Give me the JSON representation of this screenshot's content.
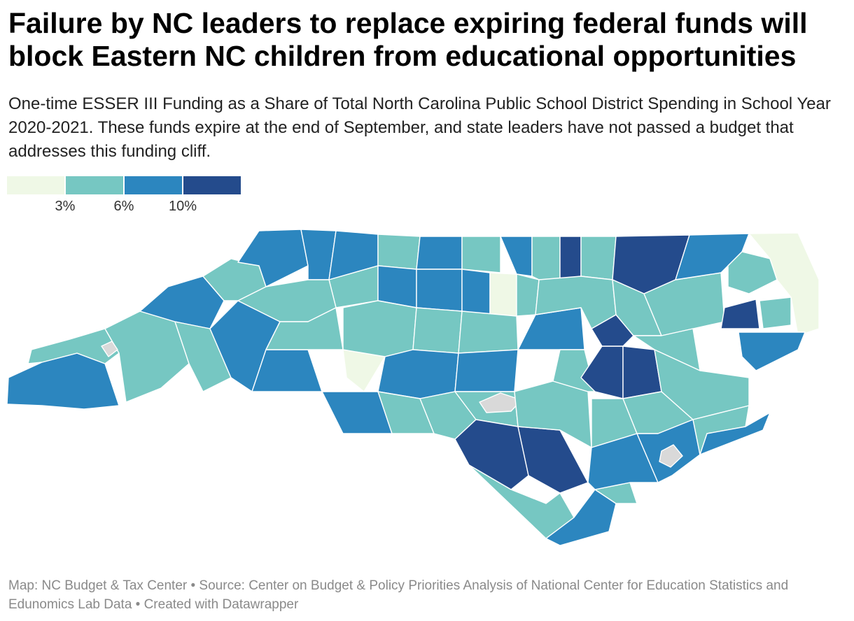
{
  "title": "Failure by NC leaders to replace expiring federal funds will block Eastern NC children from educational opportunities",
  "subtitle": "One-time ESSER III Funding as a Share of Total North Carolina Public School District Spending in School Year 2020-2021. These funds expire at the end of September, and state leaders have not passed a budget that addresses this funding cliff.",
  "legend": {
    "bins": [
      {
        "color": "#eff8e6",
        "upper": "3%"
      },
      {
        "color": "#76c7c2",
        "upper": "6%"
      },
      {
        "color": "#2c86bf",
        "upper": "10%"
      },
      {
        "color": "#244b8c",
        "upper": ""
      }
    ],
    "ticks": [
      "3%",
      "6%",
      "10%"
    ]
  },
  "no_data_color": "#d9d9d9",
  "footer": "Map: NC Budget & Tax Center • Source: Center on Budget & Policy Priorities Analysis of National Center for Education Statistics and Edunomics Lab Data • Created with Datawrapper"
}
